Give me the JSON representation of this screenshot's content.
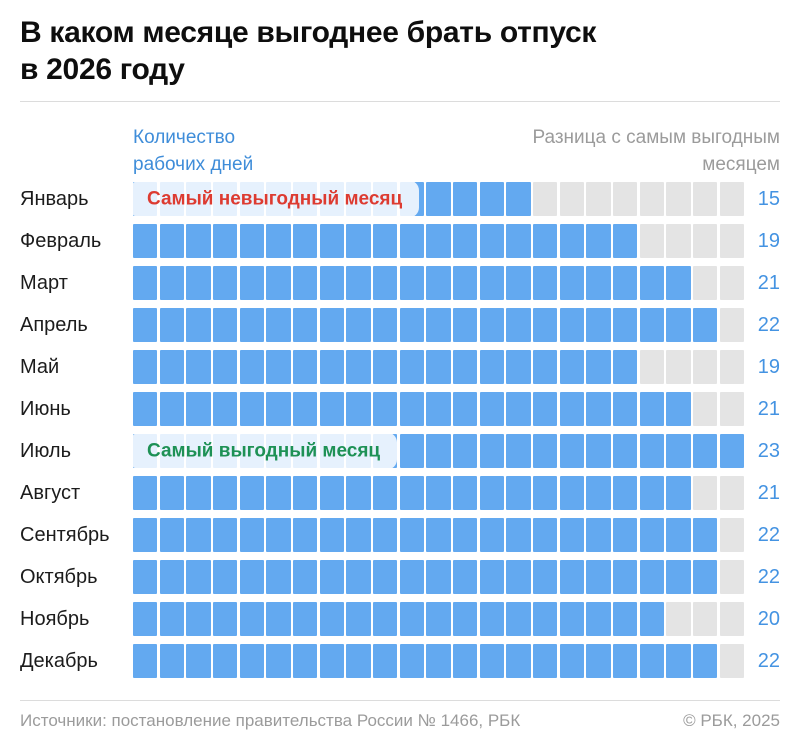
{
  "title": {
    "line1": "В каком месяце выгоднее брать отпуск",
    "line2": "в 2026 году"
  },
  "legend": {
    "left": {
      "line1": "Количество",
      "line2": "рабочих дней"
    },
    "right": {
      "line1": "Разница с самым выгодным",
      "line2": "месяцем"
    }
  },
  "chart_data": {
    "type": "bar",
    "variant": "unit-waffle-rows",
    "title": "В каком месяце выгоднее брать отпуск в 2026 году",
    "categories": [
      "Январь",
      "Февраль",
      "Март",
      "Апрель",
      "Май",
      "Июнь",
      "Июль",
      "Август",
      "Сентябрь",
      "Октябрь",
      "Ноябрь",
      "Декабрь"
    ],
    "values": [
      15,
      19,
      21,
      22,
      19,
      21,
      23,
      21,
      22,
      22,
      20,
      22
    ],
    "max_units_per_row": 23,
    "series_label": "Количество рабочих дней",
    "remainder_label": "Разница с самым выгодным месяцем",
    "annotations": [
      {
        "month": "Январь",
        "label": "Самый невыгодный месяц",
        "color": "#dd3b31",
        "name": "worst-month-badge"
      },
      {
        "month": "Июль",
        "label": "Самый выгодный месяц",
        "color": "#1e9155",
        "name": "best-month-badge"
      }
    ],
    "colors": {
      "bar_filled": "#63a9f0",
      "bar_empty": "#e4e4e4",
      "value_text": "#4493e2",
      "legend_left": "#3f8dd9",
      "legend_right": "#9b9b9b"
    },
    "legend_position": "top",
    "grid": false
  },
  "footer": {
    "sources": "Источники: постановление правительства России № 1466, РБК",
    "copyright": "© РБК, 2025"
  }
}
